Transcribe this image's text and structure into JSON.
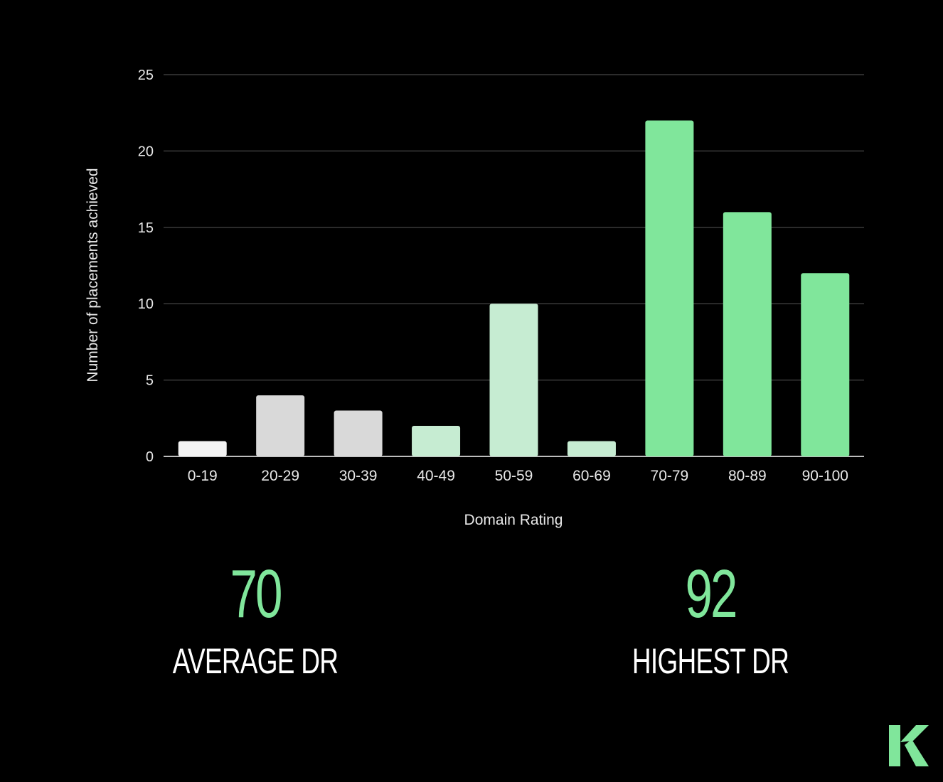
{
  "colors": {
    "background": "#000000",
    "accent": "#80E69B",
    "grid": "#3a3a3a",
    "axis_text": "#e8e8e8"
  },
  "chart_data": {
    "type": "bar",
    "xlabel": "Domain Rating",
    "ylabel": "Number of placements achieved",
    "ylim": [
      0,
      25
    ],
    "yticks": [
      0,
      5,
      10,
      15,
      20,
      25
    ],
    "grid": true,
    "categories": [
      "0-19",
      "20-29",
      "30-39",
      "40-49",
      "50-59",
      "60-69",
      "70-79",
      "80-89",
      "90-100"
    ],
    "values": [
      1,
      4,
      3,
      2,
      10,
      1,
      22,
      16,
      12
    ],
    "bar_colors": [
      "#F3F3F3",
      "#D9D9D9",
      "#D9D9D9",
      "#C6ECD2",
      "#C6ECD2",
      "#C6ECD2",
      "#80E69B",
      "#80E69B",
      "#80E69B"
    ]
  },
  "stats": {
    "average": {
      "value": "70",
      "label": "AVERAGE DR"
    },
    "highest": {
      "value": "92",
      "label": "HIGHEST DR"
    }
  },
  "logo": {
    "icon": "k-logo-icon"
  }
}
